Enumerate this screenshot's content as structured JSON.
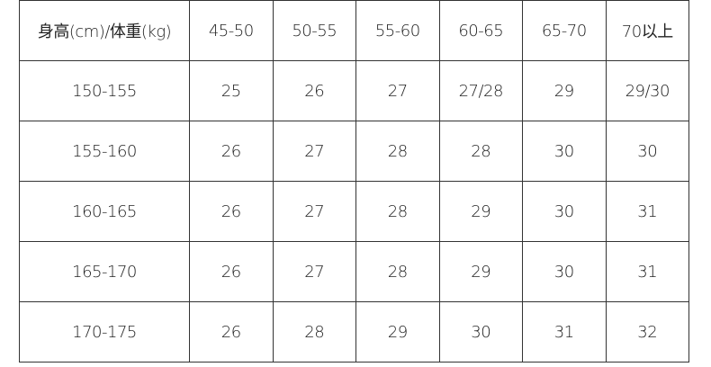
{
  "table": {
    "header": [
      "身高(cm)/体重(kg)",
      "45-50",
      "50-55",
      "55-60",
      "60-65",
      "65-70",
      "70以上"
    ],
    "rows": [
      [
        "150-155",
        "25",
        "26",
        "27",
        "27/28",
        "29",
        "29/30"
      ],
      [
        "155-160",
        "26",
        "27",
        "28",
        "28",
        "30",
        "30"
      ],
      [
        "160-165",
        "26",
        "27",
        "28",
        "29",
        "30",
        "31"
      ],
      [
        "165-170",
        "26",
        "27",
        "28",
        "29",
        "30",
        "31"
      ],
      [
        "170-175",
        "26",
        "28",
        "29",
        "30",
        "31",
        "32"
      ]
    ]
  }
}
